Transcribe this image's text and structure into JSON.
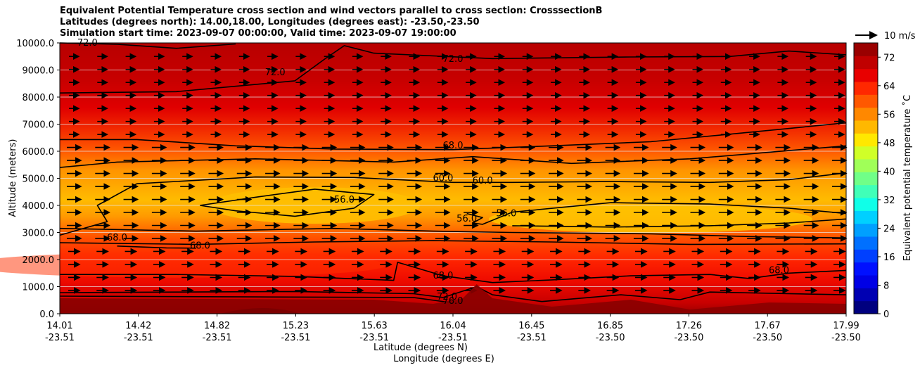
{
  "chart_data": {
    "type": "heatmap",
    "title_lines": [
      "Equivalent Potential Temperature cross section and wind vectors parallel to cross section: CrosssectionB",
      "Latitudes (degrees north): 14.00,18.00, Longitudes (degrees east): -23.50,-23.50",
      "Simulation start time: 2023-09-07 00:00:00, Valid time: 2023-09-07 19:00:00"
    ],
    "ylabel": "Altitude (meters)",
    "xlabel_lat": "Latitude (degrees N)",
    "xlabel_lon": "Longitude (degrees E)",
    "ylim": [
      0,
      10000
    ],
    "yticks": [
      "0.0",
      "1000.0",
      "2000.0",
      "3000.0",
      "4000.0",
      "5000.0",
      "6000.0",
      "7000.0",
      "8000.0",
      "9000.0",
      "10000.0"
    ],
    "xticks": [
      {
        "lat": "14.01",
        "lon": "-23.51"
      },
      {
        "lat": "14.42",
        "lon": "-23.51"
      },
      {
        "lat": "14.82",
        "lon": "-23.51"
      },
      {
        "lat": "15.23",
        "lon": "-23.51"
      },
      {
        "lat": "15.63",
        "lon": "-23.51"
      },
      {
        "lat": "16.04",
        "lon": "-23.51"
      },
      {
        "lat": "16.45",
        "lon": "-23.51"
      },
      {
        "lat": "16.85",
        "lon": "-23.50"
      },
      {
        "lat": "17.26",
        "lon": "-23.50"
      },
      {
        "lat": "17.67",
        "lon": "-23.50"
      },
      {
        "lat": "17.99",
        "lon": "-23.50"
      }
    ],
    "colorbar": {
      "label": "Equivalent potential temperature ˚C",
      "min": 0,
      "max": 76,
      "ticks": [
        "0",
        "8",
        "16",
        "24",
        "32",
        "40",
        "48",
        "56",
        "64",
        "72"
      ]
    },
    "quiver_key": "10 m/s",
    "contour_labels": [
      {
        "text": "72.0",
        "lat": 16.0,
        "alt": 9300
      },
      {
        "text": "72.0",
        "lat": 15.1,
        "alt": 8800
      },
      {
        "text": "72.0",
        "lat": 14.15,
        "alt": 9900
      },
      {
        "text": "68.0",
        "lat": 16.0,
        "alt": 6100
      },
      {
        "text": "60.0",
        "lat": 15.95,
        "alt": 4900
      },
      {
        "text": "60.0",
        "lat": 16.15,
        "alt": 4800
      },
      {
        "text": "56.0",
        "lat": 15.45,
        "alt": 4100
      },
      {
        "text": "56.0",
        "lat": 16.07,
        "alt": 3400
      },
      {
        "text": "56.0",
        "lat": 16.27,
        "alt": 3600
      },
      {
        "text": "68.0",
        "lat": 14.3,
        "alt": 2700
      },
      {
        "text": "68.0",
        "lat": 14.72,
        "alt": 2400
      },
      {
        "text": "68.0",
        "lat": 15.95,
        "alt": 1300
      },
      {
        "text": "72.0",
        "lat": 15.97,
        "alt": 520
      },
      {
        "text": "76.0",
        "lat": 16.0,
        "alt": 360
      },
      {
        "text": "68.0",
        "lat": 17.65,
        "alt": 1500
      }
    ],
    "contour_lines": [
      {
        "level": 72,
        "points": [
          [
            14.01,
            8150
          ],
          [
            14.6,
            8200
          ],
          [
            15.2,
            8600
          ],
          [
            15.35,
            9400
          ],
          [
            15.45,
            9900
          ],
          [
            15.6,
            9620
          ],
          [
            16.2,
            9420
          ],
          [
            16.9,
            9480
          ],
          [
            17.4,
            9500
          ],
          [
            17.7,
            9700
          ],
          [
            17.99,
            9560
          ]
        ]
      },
      {
        "level": 72,
        "points": [
          [
            14.01,
            10000
          ],
          [
            14.3,
            9950
          ],
          [
            14.6,
            9800
          ],
          [
            14.9,
            9960
          ]
        ]
      },
      {
        "level": 68,
        "points": [
          [
            14.01,
            6430
          ],
          [
            14.4,
            6430
          ],
          [
            14.9,
            6200
          ],
          [
            15.4,
            6080
          ],
          [
            16.0,
            6060
          ],
          [
            16.5,
            6200
          ],
          [
            17.0,
            6350
          ],
          [
            17.5,
            6700
          ],
          [
            17.99,
            7050
          ]
        ]
      },
      {
        "level": 64,
        "points": [
          [
            14.01,
            5400
          ],
          [
            14.3,
            5600
          ],
          [
            15.0,
            5720
          ],
          [
            15.7,
            5600
          ],
          [
            16.1,
            5800
          ],
          [
            16.6,
            5550
          ],
          [
            17.2,
            5720
          ],
          [
            17.99,
            6200
          ]
        ]
      },
      {
        "level": 60,
        "points": [
          [
            14.01,
            2900
          ],
          [
            14.25,
            3400
          ],
          [
            14.2,
            4000
          ],
          [
            14.4,
            4800
          ],
          [
            15.0,
            5050
          ],
          [
            15.5,
            5030
          ],
          [
            16.0,
            4850
          ],
          [
            16.3,
            4850
          ],
          [
            16.8,
            4880
          ],
          [
            17.3,
            4850
          ],
          [
            17.7,
            4950
          ],
          [
            17.99,
            5200
          ]
        ]
      },
      {
        "level": 56,
        "points": [
          [
            14.72,
            4000
          ],
          [
            15.0,
            4300
          ],
          [
            15.3,
            4600
          ],
          [
            15.6,
            4400
          ],
          [
            15.5,
            3900
          ],
          [
            15.2,
            3600
          ],
          [
            14.9,
            3800
          ],
          [
            14.72,
            4000
          ]
        ]
      },
      {
        "level": 56,
        "points": [
          [
            16.07,
            3700
          ],
          [
            16.15,
            3550
          ],
          [
            16.1,
            3350
          ],
          [
            16.15,
            3300
          ],
          [
            16.3,
            3750
          ],
          [
            16.8,
            4100
          ],
          [
            17.3,
            4050
          ],
          [
            17.7,
            3900
          ],
          [
            17.99,
            3700
          ]
        ]
      },
      {
        "level": 56,
        "points": [
          [
            16.3,
            3250
          ],
          [
            16.8,
            3200
          ],
          [
            17.3,
            3250
          ],
          [
            17.7,
            3350
          ],
          [
            17.99,
            3500
          ]
        ]
      },
      {
        "level": 60,
        "points": [
          [
            14.01,
            3150
          ],
          [
            14.7,
            3050
          ],
          [
            15.4,
            3150
          ],
          [
            15.9,
            3050
          ],
          [
            16.3,
            3000
          ],
          [
            17.0,
            2950
          ],
          [
            17.5,
            2850
          ],
          [
            17.99,
            2800
          ]
        ]
      },
      {
        "level": 64,
        "points": [
          [
            14.01,
            2620
          ],
          [
            14.7,
            2560
          ],
          [
            15.3,
            2650
          ],
          [
            15.9,
            2700
          ],
          [
            16.5,
            2650
          ],
          [
            17.2,
            2560
          ],
          [
            17.99,
            2580
          ]
        ]
      },
      {
        "level": 68,
        "points": [
          [
            14.3,
            2500
          ],
          [
            14.55,
            2430
          ],
          [
            14.7,
            2420
          ]
        ]
      },
      {
        "level": 68,
        "points": [
          [
            14.01,
            1450
          ],
          [
            14.6,
            1450
          ],
          [
            15.2,
            1380
          ],
          [
            15.7,
            1230
          ],
          [
            15.72,
            1900
          ],
          [
            15.95,
            1400
          ],
          [
            16.2,
            1150
          ],
          [
            16.5,
            1250
          ],
          [
            16.9,
            1400
          ],
          [
            17.3,
            1450
          ],
          [
            17.5,
            1300
          ],
          [
            17.7,
            1500
          ],
          [
            17.99,
            1600
          ]
        ]
      },
      {
        "level": 72,
        "points": [
          [
            14.01,
            780
          ],
          [
            14.6,
            800
          ],
          [
            15.2,
            820
          ],
          [
            15.8,
            740
          ],
          [
            15.95,
            600
          ],
          [
            16.12,
            1000
          ],
          [
            16.2,
            700
          ],
          [
            16.45,
            450
          ],
          [
            16.85,
            700
          ],
          [
            17.15,
            520
          ],
          [
            17.3,
            800
          ],
          [
            17.99,
            700
          ]
        ]
      },
      {
        "level": 72,
        "points": [
          [
            14.01,
            650
          ],
          [
            15.0,
            620
          ],
          [
            15.8,
            600
          ],
          [
            16.0,
            400
          ]
        ]
      }
    ]
  }
}
